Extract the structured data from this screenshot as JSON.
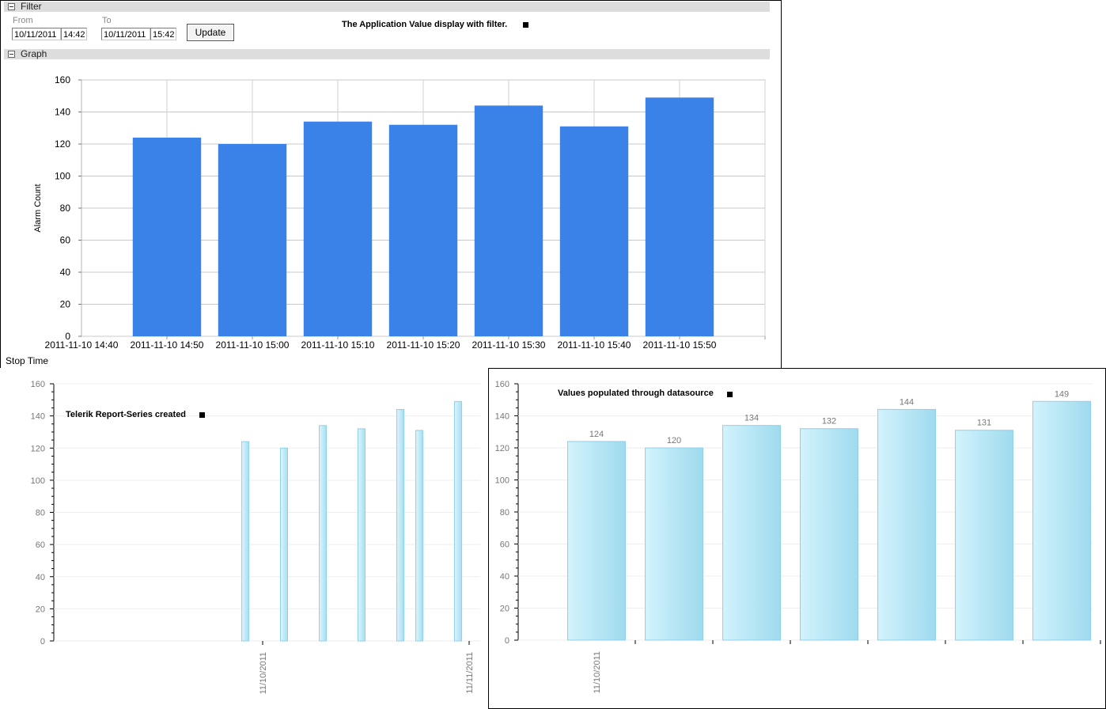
{
  "filter": {
    "section_label": "Filter",
    "from_label": "From",
    "from_date": "10/11/2011",
    "from_time": "14:42",
    "to_label": "To",
    "to_date": "10/11/2011",
    "to_time": "15:42",
    "update_label": "Update",
    "caption": "The Application Value display with filter."
  },
  "graph": {
    "section_label": "Graph"
  },
  "chart_data": [
    {
      "id": "top-chart",
      "type": "bar",
      "xlabel": "Stop Time",
      "ylabel": "Alarm Count",
      "ylim": [
        0,
        160
      ],
      "yticks": [
        0,
        20,
        40,
        60,
        80,
        100,
        120,
        140,
        160
      ],
      "grid": true,
      "x_tick_labels": [
        "2011-11-10 14:40",
        "2011-11-10 14:50",
        "2011-11-10 15:00",
        "2011-11-10 15:10",
        "2011-11-10 15:20",
        "2011-11-10 15:30",
        "2011-11-10 15:40",
        "2011-11-10 15:50"
      ],
      "categories": [
        "2011-11-10 14:50",
        "2011-11-10 15:00",
        "2011-11-10 15:10",
        "2011-11-10 15:20",
        "2011-11-10 15:30",
        "2011-11-10 15:40",
        "2011-11-10 15:50"
      ],
      "values": [
        124,
        120,
        134,
        132,
        144,
        131,
        149
      ],
      "color": "#3a82e8"
    },
    {
      "id": "bottom-left-chart",
      "type": "bar",
      "title": "Telerik Report-Series created",
      "ylim": [
        0,
        160
      ],
      "yticks": [
        0,
        20,
        40,
        60,
        80,
        100,
        120,
        140,
        160
      ],
      "x_tick_labels": [
        "11/10/2011",
        "11/11/2011"
      ],
      "values": [
        124,
        120,
        134,
        132,
        144,
        131,
        149
      ],
      "color": "#bfe9f7"
    },
    {
      "id": "bottom-right-chart",
      "type": "bar",
      "title": "Values populated through datasource",
      "ylim": [
        0,
        160
      ],
      "yticks": [
        0,
        20,
        40,
        60,
        80,
        100,
        120,
        140,
        160
      ],
      "x_tick_labels": [
        "11/10/2011"
      ],
      "values": [
        124,
        120,
        134,
        132,
        144,
        131,
        149
      ],
      "data_labels": true,
      "color": "#bfe9f7"
    }
  ]
}
